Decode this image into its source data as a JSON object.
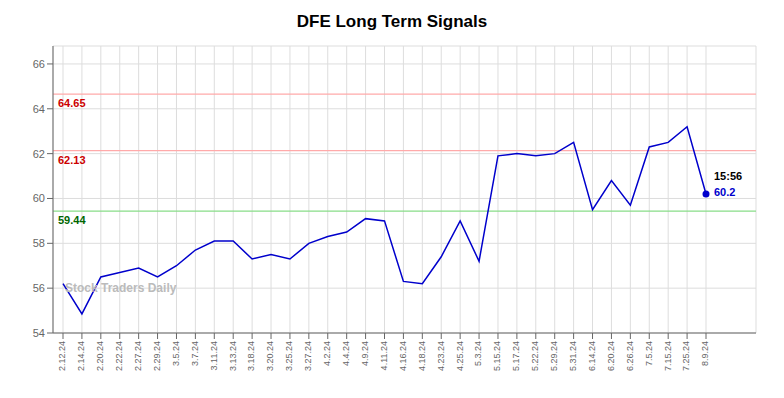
{
  "chart_data": {
    "type": "line",
    "title": "DFE Long Term Signals",
    "categories": [
      "2.12.24",
      "2.14.24",
      "2.20.24",
      "2.22.24",
      "2.27.24",
      "2.29.24",
      "3.5.24",
      "3.7.24",
      "3.11.24",
      "3.13.24",
      "3.18.24",
      "3.20.24",
      "3.25.24",
      "3.27.24",
      "4.2.24",
      "4.4.24",
      "4.9.24",
      "4.11.24",
      "4.16.24",
      "4.18.24",
      "4.23.24",
      "4.25.24",
      "5.3.24",
      "5.15.24",
      "5.17.24",
      "5.22.24",
      "5.29.24",
      "5.31.24",
      "6.14.24",
      "6.20.24",
      "6.26.24",
      "7.5.24",
      "7.15.24",
      "7.25.24",
      "8.9.24"
    ],
    "values": [
      56.2,
      54.85,
      56.5,
      56.7,
      56.9,
      56.5,
      57.0,
      57.7,
      58.1,
      58.1,
      57.3,
      57.5,
      57.3,
      58.0,
      58.3,
      58.5,
      59.1,
      59.0,
      56.3,
      56.2,
      57.4,
      59.0,
      57.2,
      61.9,
      62.0,
      61.9,
      62.0,
      62.5,
      59.5,
      60.8,
      59.7,
      62.3,
      62.5,
      63.2,
      60.2
    ],
    "color": "#0000cc",
    "ylim": [
      54,
      66.8
    ],
    "yticks": [
      54,
      56,
      58,
      60,
      62,
      64,
      66
    ],
    "grid": true,
    "reference_lines": [
      {
        "value": 64.65,
        "label": "64.65",
        "color": "#ffaaaa",
        "label_color": "#cc0000"
      },
      {
        "value": 62.13,
        "label": "62.13",
        "color": "#ffaaaa",
        "label_color": "#cc0000"
      },
      {
        "value": 59.44,
        "label": "59.44",
        "color": "#88dd88",
        "label_color": "#006600"
      }
    ],
    "annotations": [
      {
        "text": "15:56",
        "color": "#000000"
      },
      {
        "text": "60.2",
        "color": "#0000cc"
      }
    ],
    "watermark": "Stock Traders Daily"
  }
}
